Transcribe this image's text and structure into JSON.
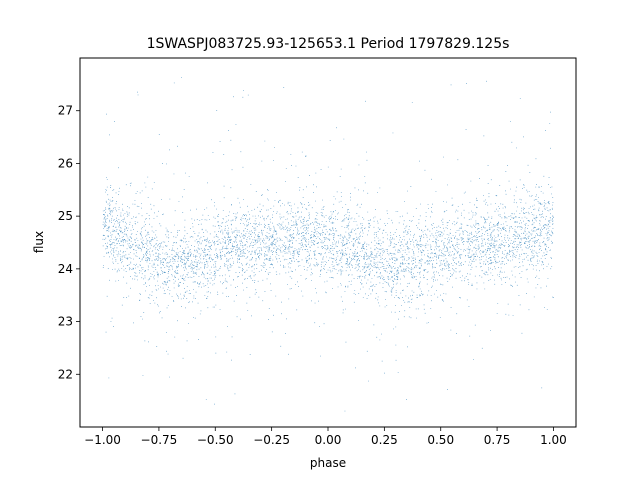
{
  "chart_data": {
    "type": "scatter",
    "title": "1SWASPJ083725.93-125653.1 Period 1797829.125s",
    "xlabel": "phase",
    "ylabel": "flux",
    "xlim": [
      -1.1,
      1.1
    ],
    "ylim": [
      21.0,
      28.0
    ],
    "x_ticks": [
      -1.0,
      -0.75,
      -0.5,
      -0.25,
      0.0,
      0.25,
      0.5,
      0.75,
      1.0
    ],
    "x_tick_labels": [
      "−1.00",
      "−0.75",
      "−0.50",
      "−0.25",
      "0.00",
      "0.25",
      "0.50",
      "0.75",
      "1.00"
    ],
    "y_ticks": [
      22,
      23,
      24,
      25,
      26,
      27
    ],
    "y_tick_labels": [
      "22",
      "23",
      "24",
      "25",
      "26",
      "27"
    ],
    "grid": false,
    "legend": "none",
    "marker_color": "#1f77b4",
    "phase_range": [
      -1.0,
      1.0
    ],
    "baseline_flux_profile": {
      "phase": [
        -1.0,
        -0.95,
        -0.9,
        -0.85,
        -0.8,
        -0.75,
        -0.7,
        -0.65,
        -0.6,
        -0.55,
        -0.5,
        -0.45,
        -0.4,
        -0.35,
        -0.3,
        -0.25,
        -0.2,
        -0.15,
        -0.1,
        -0.05,
        0.0,
        0.05,
        0.1,
        0.15,
        0.2,
        0.25,
        0.3,
        0.35,
        0.4,
        0.45,
        0.5,
        0.55,
        0.6,
        0.65,
        0.7,
        0.75,
        0.8,
        0.85,
        0.9,
        0.95,
        1.0
      ],
      "flux": [
        24.8,
        24.7,
        24.5,
        24.4,
        24.3,
        24.2,
        24.1,
        24.1,
        24.15,
        24.2,
        24.3,
        24.4,
        24.4,
        24.5,
        24.5,
        24.55,
        24.55,
        24.6,
        24.6,
        24.55,
        24.5,
        24.45,
        24.4,
        24.3,
        24.25,
        24.15,
        24.1,
        24.15,
        24.2,
        24.3,
        24.35,
        24.4,
        24.4,
        24.5,
        24.5,
        24.55,
        24.55,
        24.6,
        24.65,
        24.7,
        24.75
      ]
    },
    "scatter_sigma": 0.38,
    "outlier_range": [
      21.3,
      27.7
    ]
  }
}
